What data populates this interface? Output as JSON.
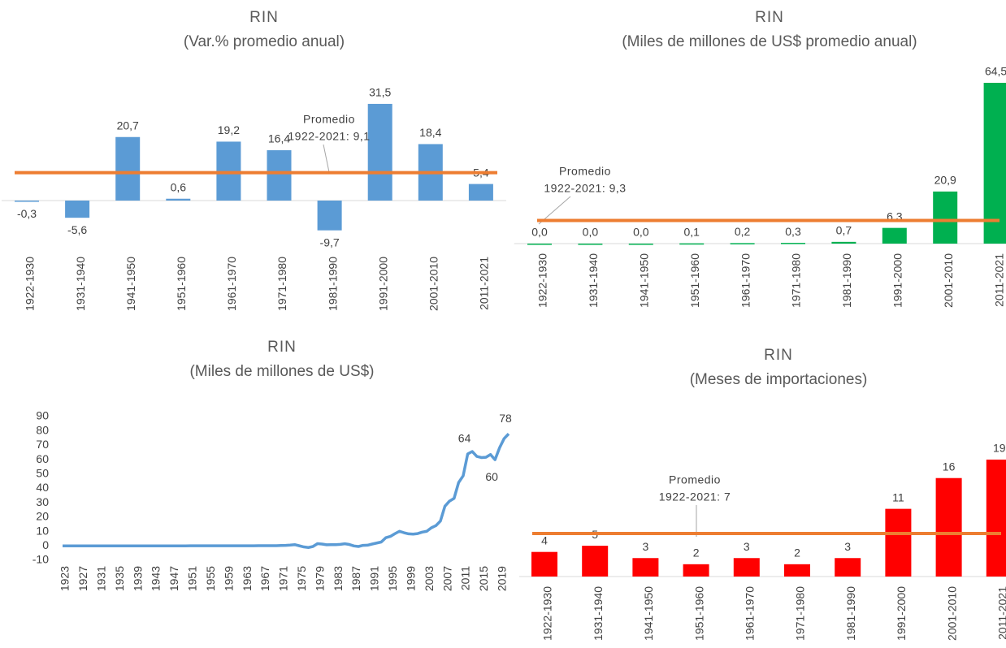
{
  "chart_data": [
    {
      "type": "bar",
      "title": "RIN",
      "subtitle": "(Var.% promedio anual)",
      "categories": [
        "1922-1930",
        "1931-1940",
        "1941-1950",
        "1951-1960",
        "1961-1970",
        "1971-1980",
        "1981-1990",
        "1991-2000",
        "2001-2010",
        "2011-2021"
      ],
      "values": [
        -0.3,
        -5.6,
        20.7,
        0.6,
        19.2,
        16.4,
        -9.7,
        31.5,
        18.4,
        5.4
      ],
      "value_labels": [
        "-0,3",
        "-5,6",
        "20,7",
        "0,6",
        "19,2",
        "16,4",
        "-9,7",
        "31,5",
        "18,4",
        "5,4"
      ],
      "color": "#5b9bd5",
      "average": 9.1,
      "annotation": [
        "Promedio",
        "1922-2021: 9,1"
      ]
    },
    {
      "type": "bar",
      "title": "RIN",
      "subtitle": "(Miles de millones de US$ promedio anual)",
      "categories": [
        "1922-1930",
        "1931-1940",
        "1941-1950",
        "1951-1960",
        "1961-1970",
        "1971-1980",
        "1981-1990",
        "1991-2000",
        "2001-2010",
        "2011-2021"
      ],
      "values": [
        0.0,
        0.0,
        0.0,
        0.1,
        0.2,
        0.3,
        0.7,
        6.3,
        20.9,
        64.5
      ],
      "value_labels": [
        "0,0",
        "0,0",
        "0,0",
        "0,1",
        "0,2",
        "0,3",
        "0,7",
        "6,3",
        "20,9",
        "64,5"
      ],
      "color": "#00b050",
      "average": 9.3,
      "annotation": [
        "Promedio",
        "1922-2021: 9,3"
      ]
    },
    {
      "type": "line",
      "title": "RIN",
      "subtitle": "(Miles de millones de US$)",
      "x": [
        1923,
        1924,
        1925,
        1926,
        1927,
        1928,
        1929,
        1930,
        1931,
        1932,
        1933,
        1934,
        1935,
        1936,
        1937,
        1938,
        1939,
        1940,
        1941,
        1942,
        1943,
        1944,
        1945,
        1946,
        1947,
        1948,
        1949,
        1950,
        1951,
        1952,
        1953,
        1954,
        1955,
        1956,
        1957,
        1958,
        1959,
        1960,
        1961,
        1962,
        1963,
        1964,
        1965,
        1966,
        1967,
        1968,
        1969,
        1970,
        1971,
        1972,
        1973,
        1974,
        1975,
        1976,
        1977,
        1978,
        1979,
        1980,
        1981,
        1982,
        1983,
        1984,
        1985,
        1986,
        1987,
        1988,
        1989,
        1990,
        1991,
        1992,
        1993,
        1994,
        1995,
        1996,
        1997,
        1998,
        1999,
        2000,
        2001,
        2002,
        2003,
        2004,
        2005,
        2006,
        2007,
        2008,
        2009,
        2010,
        2011,
        2012,
        2013,
        2014,
        2015,
        2016,
        2017,
        2018,
        2019,
        2020,
        2021
      ],
      "series": [
        {
          "name": "RIN",
          "color": "#5b9bd5",
          "values": [
            0,
            0,
            0,
            0,
            0,
            0,
            0,
            0,
            0,
            0,
            0,
            0,
            0,
            0,
            0,
            0,
            0,
            0,
            0,
            0,
            0,
            0,
            0,
            0,
            0,
            0,
            0,
            0,
            0.1,
            0.1,
            0.1,
            0.1,
            0.1,
            0.1,
            0.1,
            0.1,
            0.1,
            0.1,
            0.1,
            0.1,
            0.1,
            0.1,
            0.1,
            0.2,
            0.2,
            0.2,
            0.2,
            0.2,
            0.3,
            0.4,
            0.6,
            0.9,
            0.1,
            -0.7,
            -1.1,
            -0.4,
            1.6,
            1.3,
            0.8,
            0.9,
            0.9,
            1.1,
            1.5,
            1.0,
            0.0,
            -0.4,
            0.4,
            0.5,
            1.3,
            2.0,
            2.7,
            5.7,
            6.6,
            8.5,
            10.2,
            9.2,
            8.4,
            8.2,
            8.6,
            9.6,
            10.2,
            12.6,
            14.1,
            17.3,
            27.7,
            31.2,
            33.1,
            44.1,
            48.8,
            64,
            65.7,
            62.3,
            61.5,
            61.7,
            63.6,
            60,
            68.3,
            74.7,
            78
          ],
          "value_labels": [
            null,
            null,
            null,
            null,
            null,
            null,
            null,
            null,
            null,
            null,
            null,
            null,
            null,
            null,
            null,
            null,
            null,
            null,
            null,
            null,
            null,
            null,
            null,
            null,
            null,
            null,
            null,
            null,
            null,
            null,
            null,
            null,
            null,
            null,
            null,
            null,
            null,
            null,
            null,
            null,
            null,
            null,
            null,
            null,
            null,
            null,
            null,
            null,
            null,
            null,
            null,
            null,
            null,
            null,
            null,
            null,
            null,
            null,
            null,
            null,
            null,
            null,
            null,
            null,
            null,
            null,
            null,
            null,
            null,
            null,
            null,
            null,
            null,
            null,
            null,
            null,
            null,
            null,
            null,
            null,
            null,
            null,
            null,
            null,
            null,
            null,
            null,
            null,
            null,
            "64",
            null,
            null,
            null,
            null,
            null,
            "60",
            null,
            null,
            "78"
          ]
        }
      ],
      "xlim": [
        1923,
        2021
      ],
      "xticks": [
        1923,
        1927,
        1931,
        1935,
        1939,
        1943,
        1947,
        1951,
        1955,
        1959,
        1963,
        1967,
        1971,
        1975,
        1979,
        1983,
        1987,
        1991,
        1995,
        1999,
        2003,
        2007,
        2011,
        2015,
        2019
      ],
      "ylim": [
        -10,
        90
      ],
      "yticks": [
        -10,
        0,
        10,
        20,
        30,
        40,
        50,
        60,
        70,
        80,
        90
      ]
    },
    {
      "type": "bar",
      "title": "RIN",
      "subtitle": "(Meses de importaciones)",
      "categories": [
        "1922-1930",
        "1931-1940",
        "1941-1950",
        "1951-1960",
        "1961-1970",
        "1971-1980",
        "1981-1990",
        "1991-2000",
        "2001-2010",
        "2011-2021"
      ],
      "values": [
        4,
        5,
        3,
        2,
        3,
        2,
        3,
        11,
        16,
        19
      ],
      "color": "#ff0000",
      "average": 7,
      "annotation": [
        "Promedio",
        "1922-2021: 7"
      ]
    }
  ]
}
